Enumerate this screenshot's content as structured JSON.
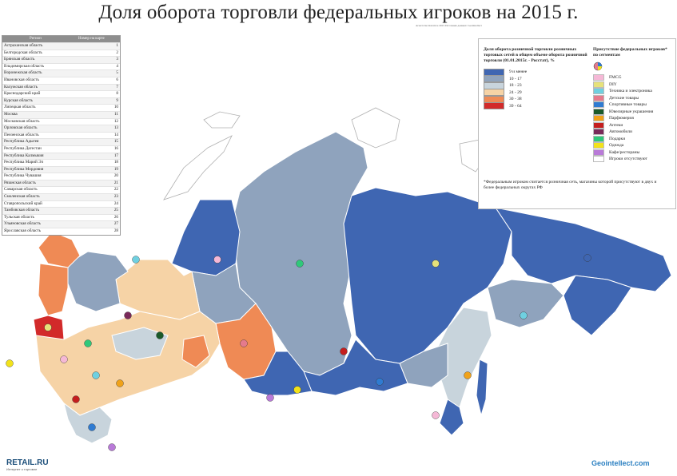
{
  "title": "Доля оборота торговли федеральных игроков на 2015 г.",
  "note": "Агентство Retail.ru 2015 Источник данных: GeoIntellect",
  "table": {
    "header_name": "Регион",
    "header_num": "Номер на карте",
    "rows": [
      {
        "name": "Астраханская область",
        "num": "1"
      },
      {
        "name": "Белгородская область",
        "num": "2"
      },
      {
        "name": "Брянская область",
        "num": "3"
      },
      {
        "name": "Владимирская область",
        "num": "4"
      },
      {
        "name": "Воронежская область",
        "num": "5"
      },
      {
        "name": "Ивановская область",
        "num": "6"
      },
      {
        "name": "Калужская область",
        "num": "7"
      },
      {
        "name": "Краснодарский край",
        "num": "8"
      },
      {
        "name": "Курская область",
        "num": "9"
      },
      {
        "name": "Липецкая область",
        "num": "10"
      },
      {
        "name": "Москва",
        "num": "11"
      },
      {
        "name": "Московская область",
        "num": "12"
      },
      {
        "name": "Орловская область",
        "num": "13"
      },
      {
        "name": "Пензенская область",
        "num": "14"
      },
      {
        "name": "Республика Адыгея",
        "num": "15"
      },
      {
        "name": "Республика Дагестан",
        "num": "16"
      },
      {
        "name": "Республика Калмыкия",
        "num": "17"
      },
      {
        "name": "Республика Марий Эл",
        "num": "18"
      },
      {
        "name": "Республика Мордовия",
        "num": "19"
      },
      {
        "name": "Республика Чувашия",
        "num": "20"
      },
      {
        "name": "Рязанская область",
        "num": "21"
      },
      {
        "name": "Самарская область",
        "num": "22"
      },
      {
        "name": "Смоленская область",
        "num": "23"
      },
      {
        "name": "Ставропольский край",
        "num": "24"
      },
      {
        "name": "Тамбовская область",
        "num": "25"
      },
      {
        "name": "Тульская область",
        "num": "26"
      },
      {
        "name": "Ульяновская область",
        "num": "27"
      },
      {
        "name": "Ярославская область",
        "num": "28"
      }
    ]
  },
  "legend": {
    "share_title": "Доля оборота розничной торговли розничных торговых сетей в общем объеме оборота розничной торговли (01.01.2015г. - Росстат), %",
    "share_classes": [
      {
        "label": "9 и менее",
        "color": "#3f66b2"
      },
      {
        "label": "10 - 17",
        "color": "#8fa3bd"
      },
      {
        "label": "18 - 23",
        "color": "#c8d4dc"
      },
      {
        "label": "24 - 29",
        "color": "#f6d3a6"
      },
      {
        "label": "30 - 38",
        "color": "#ef8a55"
      },
      {
        "label": "39 - 64",
        "color": "#d22a2a"
      }
    ],
    "segments_title": "Присутствие федеральных игроков* по сегментам",
    "segments": [
      {
        "label": "FMCG",
        "color": "#f5b8d6"
      },
      {
        "label": "DIY",
        "color": "#e6e27a"
      },
      {
        "label": "Техника и электроника",
        "color": "#6fd0e0"
      },
      {
        "label": "Детские товары",
        "color": "#e57a8c"
      },
      {
        "label": "Спортивные товары",
        "color": "#2f7bd1"
      },
      {
        "label": "Ювелирные украшения",
        "color": "#1a5a2a"
      },
      {
        "label": "Парфюмерия",
        "color": "#f0a21a"
      },
      {
        "label": "Аптеки",
        "color": "#c41e1e"
      },
      {
        "label": "Автомобили",
        "color": "#7a2a5a"
      },
      {
        "label": "Подарки",
        "color": "#2fc87a"
      },
      {
        "label": "Одежда",
        "color": "#f2e21a"
      },
      {
        "label": "Кафе/рестораны",
        "color": "#b97ad8"
      },
      {
        "label": "Игроки отсутствуют",
        "color": "#ffffff"
      }
    ],
    "footnote": "*Федеральным игроком считается розничная сеть, магазины которой присутствуют в двух и более федеральных округах РФ"
  },
  "logos": {
    "left": "RETAIL.RU",
    "left_tag": "Интернет о торговле",
    "right": "Geointellect.com"
  }
}
